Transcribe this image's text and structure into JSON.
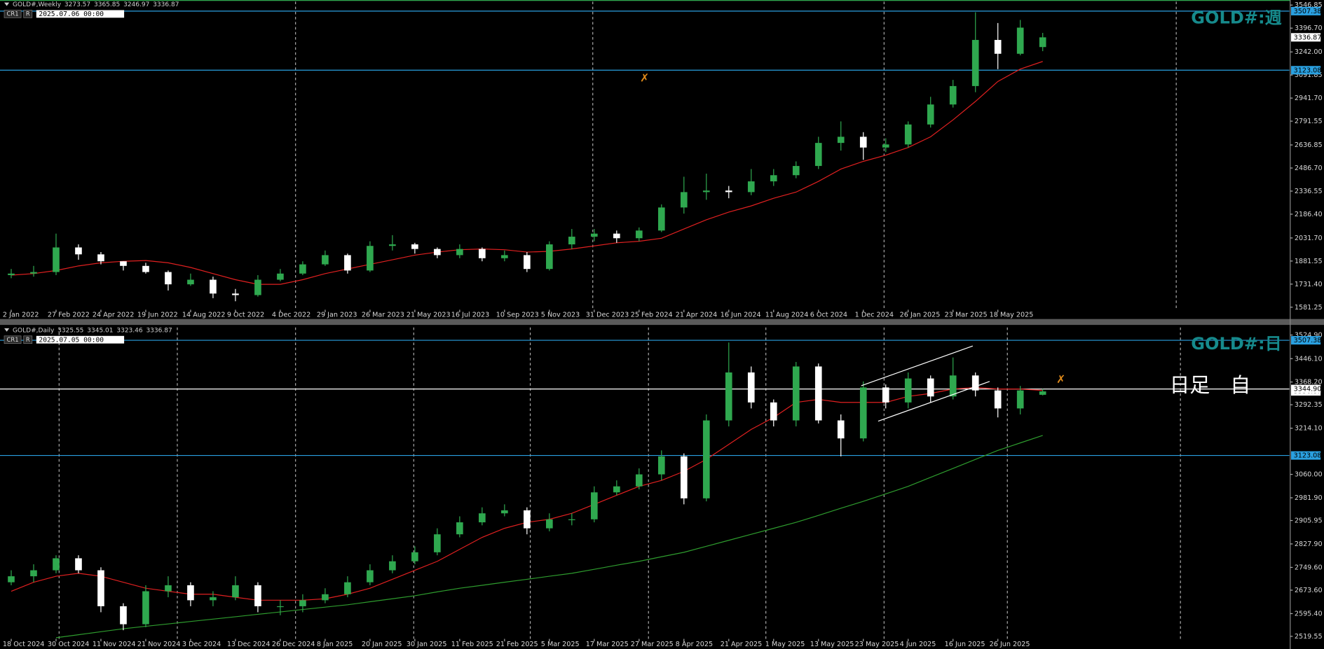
{
  "chart_data": [
    {
      "type": "candlestick",
      "symbol": "GOLD#,Weekly",
      "time_label": "2025.07.06 00:00",
      "buttons": [
        "CR1",
        "R"
      ],
      "watermark": "GOLD#:週",
      "watermark_color": "#168a8c",
      "up_color": "#2fa84f",
      "down_color": "#ffffff",
      "open": [
        1790,
        1800,
        1810,
        1970,
        1925,
        1880,
        1850,
        1810,
        1730,
        1760,
        1670,
        1660,
        1760,
        1800,
        1860,
        1920,
        1820,
        1980,
        1990,
        1960,
        1920,
        1960,
        1900,
        1920,
        1830,
        1990,
        2040,
        2060,
        2030,
        2080,
        2230,
        2330,
        2340,
        2330,
        2400,
        2440,
        2500,
        2650,
        2690,
        2620,
        2640,
        2770,
        2900,
        3020,
        3320,
        3230,
        3273.57
      ],
      "high": [
        1830,
        1850,
        2060,
        1990,
        1940,
        1880,
        1870,
        1820,
        1800,
        1780,
        1700,
        1790,
        1830,
        1880,
        1950,
        1930,
        2010,
        2050,
        2000,
        1970,
        1990,
        1970,
        1950,
        1940,
        2010,
        2090,
        2090,
        2080,
        2100,
        2250,
        2430,
        2450,
        2370,
        2480,
        2480,
        2530,
        2690,
        2790,
        2720,
        2680,
        2790,
        2950,
        3060,
        3500,
        3430,
        3450,
        3365.85
      ],
      "low": [
        1770,
        1780,
        1790,
        1890,
        1860,
        1820,
        1800,
        1690,
        1720,
        1640,
        1620,
        1650,
        1750,
        1790,
        1850,
        1800,
        1810,
        1950,
        1930,
        1900,
        1900,
        1880,
        1880,
        1810,
        1820,
        1960,
        2010,
        2000,
        2010,
        2070,
        2190,
        2280,
        2290,
        2310,
        2370,
        2420,
        2480,
        2600,
        2540,
        2590,
        2620,
        2750,
        2880,
        2980,
        3130,
        3220,
        3246.97
      ],
      "close": [
        1800,
        1810,
        1970,
        1925,
        1880,
        1850,
        1810,
        1730,
        1760,
        1670,
        1660,
        1760,
        1800,
        1860,
        1920,
        1820,
        1980,
        1990,
        1960,
        1920,
        1960,
        1900,
        1920,
        1830,
        1990,
        2040,
        2060,
        2030,
        2080,
        2230,
        2330,
        2340,
        2330,
        2400,
        2440,
        2500,
        2650,
        2690,
        2620,
        2640,
        2770,
        2900,
        3020,
        3320,
        3230,
        3400,
        3336.87
      ],
      "ma": [
        {
          "color": "#e02020",
          "values": [
            1790,
            1800,
            1820,
            1850,
            1870,
            1880,
            1885,
            1870,
            1840,
            1800,
            1760,
            1730,
            1730,
            1760,
            1800,
            1830,
            1860,
            1890,
            1920,
            1940,
            1955,
            1960,
            1955,
            1940,
            1945,
            1960,
            1980,
            2000,
            2010,
            2030,
            2090,
            2150,
            2200,
            2240,
            2290,
            2330,
            2400,
            2480,
            2530,
            2570,
            2620,
            2690,
            2800,
            2920,
            3050,
            3130,
            3180
          ]
        }
      ],
      "hlines": [
        {
          "value": 3507.38,
          "color": "#2aa0e0"
        },
        {
          "value": 3123.08,
          "color": "#2aa0e0"
        }
      ],
      "last_price": 3336.87,
      "xlim": [
        -0.5,
        57
      ],
      "xticks": [
        {
          "value": 0,
          "label": "2 Jan 2022"
        },
        {
          "value": 2,
          "label": "27 Feb 2022"
        },
        {
          "value": 4,
          "label": "24 Apr 2022"
        },
        {
          "value": 6,
          "label": "19 Jun 2022"
        },
        {
          "value": 8,
          "label": "14 Aug 2022"
        },
        {
          "value": 10,
          "label": "9 Oct 2022"
        },
        {
          "value": 12,
          "label": "4 Dec 2022"
        },
        {
          "value": 14,
          "label": "29 Jan 2023"
        },
        {
          "value": 16,
          "label": "26 Mar 2023"
        },
        {
          "value": 18,
          "label": "21 May 2023"
        },
        {
          "value": 20,
          "label": "16 Jul 2023"
        },
        {
          "value": 22,
          "label": "10 Sep 2023"
        },
        {
          "value": 24,
          "label": "5 Nov 2023"
        },
        {
          "value": 26,
          "label": "31 Dec 2023"
        },
        {
          "value": 28,
          "label": "25 Feb 2024"
        },
        {
          "value": 30,
          "label": "21 Apr 2024"
        },
        {
          "value": 32,
          "label": "16 Jun 2024"
        },
        {
          "value": 34,
          "label": "11 Aug 2024"
        },
        {
          "value": 36,
          "label": "6 Oct 2024"
        },
        {
          "value": 38,
          "label": "1 Dec 2024"
        },
        {
          "value": 40,
          "label": "26 Jan 2025"
        },
        {
          "value": 42,
          "label": "23 Mar 2025"
        },
        {
          "value": 44,
          "label": "18 May 2025"
        }
      ],
      "ylim": [
        1564.8,
        3568.8
      ],
      "yticks": [
        1581.25,
        {
          "value": 1731.4,
          "label": "1731.40"
        },
        1881.55,
        {
          "value": 2031.7,
          "label": "2031.70"
        },
        {
          "value": 2186.4,
          "label": "2186.40"
        },
        2336.55,
        {
          "value": 2486.7,
          "label": "2486.70"
        },
        2636.85,
        2791.55,
        {
          "value": 2941.7,
          "label": "2941.70"
        },
        3091.85,
        {
          "value": 3242,
          "label": "3242.00"
        },
        {
          "value": 3396.7,
          "label": "3396.70"
        },
        3546.85
      ]
    },
    {
      "type": "candlestick",
      "symbol": "GOLD#,Daily",
      "time_label": "2025.07.05 00:00",
      "buttons": [
        "CR1",
        "R"
      ],
      "watermark": "GOLD#:日",
      "watermark_color": "#168a8c",
      "annotation": "日足　自",
      "up_color": "#2fa84f",
      "down_color": "#ffffff",
      "open": [
        2700,
        2720,
        2740,
        2780,
        2740,
        2620,
        2560,
        2670,
        2690,
        2640,
        2650,
        2690,
        2620,
        2620,
        2640,
        2660,
        2700,
        2740,
        2770,
        2800,
        2860,
        2900,
        2930,
        2940,
        2880,
        2910,
        2910,
        3000,
        3020,
        3060,
        3120,
        2980,
        3240,
        3400,
        3300,
        3240,
        3420,
        3240,
        3180,
        3350,
        3300,
        3380,
        3320,
        3390,
        3340,
        3280,
        3325.55
      ],
      "high": [
        2740,
        2760,
        2790,
        2790,
        2750,
        2630,
        2690,
        2720,
        2700,
        2670,
        2720,
        2700,
        2640,
        2660,
        2680,
        2720,
        2760,
        2790,
        2820,
        2880,
        2920,
        2950,
        2960,
        2950,
        2930,
        2930,
        3020,
        3040,
        3080,
        3140,
        3130,
        3260,
        3500,
        3420,
        3310,
        3435,
        3430,
        3260,
        3370,
        3360,
        3400,
        3390,
        3450,
        3400,
        3350,
        3355,
        3345.01
      ],
      "low": [
        2690,
        2700,
        2730,
        2730,
        2600,
        2540,
        2550,
        2650,
        2620,
        2620,
        2640,
        2600,
        2590,
        2600,
        2630,
        2650,
        2690,
        2730,
        2760,
        2790,
        2850,
        2890,
        2920,
        2860,
        2870,
        2890,
        2900,
        2990,
        3010,
        3040,
        2960,
        2970,
        3220,
        3280,
        3220,
        3220,
        3230,
        3120,
        3170,
        3280,
        3280,
        3300,
        3310,
        3320,
        3250,
        3260,
        3323.46
      ],
      "close": [
        2720,
        2740,
        2780,
        2740,
        2620,
        2560,
        2670,
        2690,
        2640,
        2650,
        2690,
        2620,
        2620,
        2640,
        2660,
        2700,
        2740,
        2770,
        2800,
        2860,
        2900,
        2930,
        2940,
        2880,
        2910,
        2910,
        3000,
        3020,
        3060,
        3120,
        2980,
        3240,
        3400,
        3300,
        3240,
        3420,
        3240,
        3180,
        3350,
        3300,
        3380,
        3320,
        3390,
        3340,
        3280,
        3340,
        3336.87
      ],
      "ma": [
        {
          "color": "#e02020",
          "values": [
            2670,
            2700,
            2720,
            2730,
            2720,
            2700,
            2680,
            2670,
            2660,
            2660,
            2650,
            2640,
            2640,
            2640,
            2645,
            2660,
            2680,
            2710,
            2740,
            2770,
            2810,
            2850,
            2880,
            2900,
            2910,
            2930,
            2960,
            2990,
            3020,
            3040,
            3070,
            3110,
            3160,
            3210,
            3250,
            3300,
            3310,
            3300,
            3300,
            3300,
            3320,
            3330,
            3345,
            3350,
            3345,
            3345,
            3340
          ]
        },
        {
          "color": "#2e9c2e",
          "values": [
            null,
            null,
            2515,
            2525,
            2535,
            2545,
            2553,
            2561,
            2569,
            2577,
            2585,
            2593,
            2601,
            2609,
            2617,
            2625,
            2635,
            2645,
            2655,
            2668,
            2680,
            2690,
            2700,
            2710,
            2720,
            2730,
            2743,
            2757,
            2770,
            2785,
            2800,
            2820,
            2840,
            2860,
            2880,
            2900,
            2923,
            2947,
            2970,
            2995,
            3020,
            3050,
            3080,
            3110,
            3140,
            3165,
            3190
          ]
        }
      ],
      "hlines": [
        {
          "value": 3507.38,
          "color": "#2aa0e0"
        },
        {
          "value": 3123.08,
          "color": "#2aa0e0"
        },
        {
          "value": {
            "value": 3344.9,
            "label": "3344.90"
          },
          "color": "#ffffff"
        }
      ],
      "last_price": 3336.87,
      "xlim": [
        -0.5,
        57
      ],
      "xticks": [
        {
          "value": 0,
          "label": "18 Oct 2024"
        },
        {
          "value": 2,
          "label": "30 Oct 2024"
        },
        {
          "value": 4,
          "label": "11 Nov 2024"
        },
        {
          "value": 6,
          "label": "21 Nov 2024"
        },
        {
          "value": 8,
          "label": "3 Dec 2024"
        },
        {
          "value": 10,
          "label": "13 Dec 2024"
        },
        {
          "value": 12,
          "label": "26 Dec 2024"
        },
        {
          "value": 14,
          "label": "8 Jan 2025"
        },
        {
          "value": 16,
          "label": "20 Jan 2025"
        },
        {
          "value": 18,
          "label": "30 Jan 2025"
        },
        {
          "value": 20,
          "label": "11 Feb 2025"
        },
        {
          "value": 22,
          "label": "21 Feb 2025"
        },
        {
          "value": 24,
          "label": "5 Mar 2025"
        },
        {
          "value": 26,
          "label": "17 Mar 2025"
        },
        {
          "value": 28,
          "label": "27 Mar 2025"
        },
        {
          "value": 30,
          "label": "8 Apr 2025"
        },
        {
          "value": 32,
          "label": "21 Apr 2025"
        },
        {
          "value": 34,
          "label": "1 May 2025"
        },
        {
          "value": 36,
          "label": "13 May 2025"
        },
        {
          "value": 38,
          "label": "23 May 2025"
        },
        {
          "value": 40,
          "label": "4 Jun 2025"
        },
        {
          "value": 42,
          "label": "16 Jun 2025"
        },
        {
          "value": 44,
          "label": "26 Jun 2025"
        }
      ],
      "ylim": [
        2511.1,
        3550.2
      ],
      "yticks": [
        2519.55,
        {
          "value": 2595.4,
          "label": "2595.40"
        },
        {
          "value": 2673.6,
          "label": "2673.60"
        },
        {
          "value": 2749.6,
          "label": "2749.60"
        },
        {
          "value": 2827.9,
          "label": "2827.90"
        },
        2905.95,
        {
          "value": 2981.9,
          "label": "2981.90"
        },
        {
          "value": 3060,
          "label": "3060.00"
        },
        {
          "value": 3214.1,
          "label": "3214.10"
        },
        3292.35,
        {
          "value": 3368.2,
          "label": "3368.20"
        },
        {
          "value": 3446.1,
          "label": "3446.10"
        },
        {
          "value": 3524.9,
          "label": "3524.90"
        }
      ]
    }
  ]
}
